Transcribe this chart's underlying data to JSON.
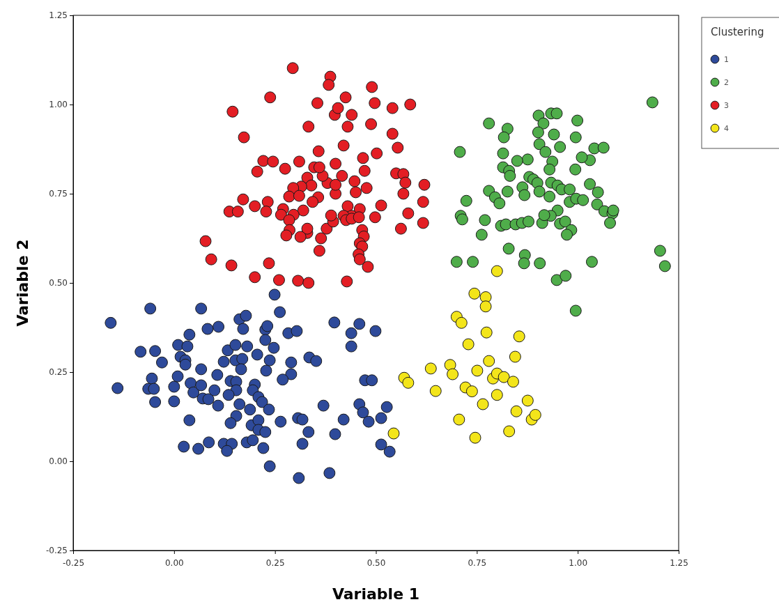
{
  "chart_data": {
    "type": "scatter",
    "xlabel": "Variable 1",
    "ylabel": "Variable 2",
    "legend_title": "Clustering",
    "legend": "top right",
    "marker": "circle",
    "grid": false,
    "xlim": [
      -0.25,
      1.25
    ],
    "ylim": [
      -0.25,
      1.25
    ],
    "xticks": [
      {
        "value": -0.25,
        "label": "-0.25"
      },
      {
        "value": 0,
        "label": "0.00"
      },
      {
        "value": 0.25,
        "label": "0.25"
      },
      {
        "value": 0.5,
        "label": "0.50"
      },
      {
        "value": 0.75,
        "label": "0.75"
      },
      {
        "value": 1,
        "label": "1.00"
      },
      {
        "value": 1.25,
        "label": "1.25"
      }
    ],
    "yticks": [
      {
        "value": -0.25,
        "label": "-0.25"
      },
      {
        "value": 0,
        "label": "0.00"
      },
      {
        "value": 0.25,
        "label": "0.25"
      },
      {
        "value": 0.5,
        "label": "0.50"
      },
      {
        "value": 0.75,
        "label": "0.75"
      },
      {
        "value": 1,
        "label": "1.00"
      },
      {
        "value": 1.25,
        "label": "1.25"
      }
    ],
    "series": [
      {
        "name": "1",
        "color": "#2e4a9a",
        "x": [
          -0.157,
          -0.059,
          0.067,
          0.249,
          0.262,
          -0.14,
          -0.083,
          -0.047,
          -0.03,
          -0.055,
          -0.064,
          -0.05,
          -0.047,
          0.0,
          0.0,
          0.009,
          0.01,
          0.033,
          0.038,
          0.016,
          0.028,
          0.028,
          0.083,
          0.11,
          0.041,
          0.067,
          0.048,
          0.067,
          0.071,
          0.085,
          0.1,
          0.109,
          0.107,
          0.123,
          0.133,
          0.152,
          0.181,
          0.162,
          0.178,
          0.171,
          0.152,
          0.169,
          0.166,
          0.14,
          0.154,
          0.154,
          0.135,
          0.162,
          0.2,
          0.195,
          0.209,
          0.218,
          0.235,
          0.188,
          0.154,
          0.14,
          0.192,
          0.209,
          0.209,
          0.226,
          0.206,
          0.226,
          0.231,
          0.226,
          0.247,
          0.237,
          0.228,
          0.29,
          0.29,
          0.269,
          0.283,
          0.304,
          0.335,
          0.352,
          0.264,
          0.307,
          0.318,
          0.333,
          0.318,
          0.37,
          0.397,
          0.439,
          0.459,
          0.439,
          0.499,
          0.473,
          0.49,
          0.42,
          0.399,
          0.459,
          0.468,
          0.482,
          0.513,
          0.527,
          0.513,
          0.534,
          0.024,
          0.06,
          0.086,
          0.123,
          0.143,
          0.131,
          0.18,
          0.195,
          0.221,
          0.237,
          0.309,
          0.385,
          0.038
        ],
        "values": [
          0.388,
          0.428,
          0.428,
          0.467,
          0.418,
          0.205,
          0.307,
          0.309,
          0.277,
          0.232,
          0.203,
          0.203,
          0.166,
          0.168,
          0.209,
          0.238,
          0.326,
          0.322,
          0.355,
          0.293,
          0.283,
          0.271,
          0.371,
          0.377,
          0.219,
          0.258,
          0.193,
          0.213,
          0.176,
          0.174,
          0.199,
          0.156,
          0.242,
          0.279,
          0.311,
          0.326,
          0.322,
          0.398,
          0.408,
          0.371,
          0.283,
          0.287,
          0.258,
          0.225,
          0.223,
          0.199,
          0.186,
          0.16,
          0.215,
          0.199,
          0.18,
          0.166,
          0.145,
          0.145,
          0.127,
          0.107,
          0.101,
          0.115,
          0.088,
          0.082,
          0.299,
          0.369,
          0.379,
          0.34,
          0.318,
          0.283,
          0.254,
          0.277,
          0.244,
          0.229,
          0.359,
          0.365,
          0.291,
          0.281,
          0.111,
          0.121,
          0.117,
          0.082,
          0.049,
          0.156,
          0.389,
          0.359,
          0.385,
          0.322,
          0.365,
          0.227,
          0.227,
          0.117,
          0.076,
          0.16,
          0.137,
          0.111,
          0.121,
          0.152,
          0.047,
          0.027,
          0.041,
          0.035,
          0.053,
          0.049,
          0.049,
          0.029,
          0.053,
          0.059,
          0.037,
          -0.014,
          -0.047,
          -0.033,
          0.115
        ]
      },
      {
        "name": "2",
        "color": "#4fad4a",
        "x": [
          1.185,
          1.204,
          1.216,
          0.78,
          0.826,
          0.817,
          0.903,
          0.915,
          0.934,
          0.948,
          0.941,
          0.999,
          0.995,
          0.902,
          0.905,
          0.956,
          0.815,
          0.708,
          0.876,
          0.815,
          0.83,
          0.85,
          0.92,
          0.937,
          0.93,
          0.994,
          1.041,
          1.064,
          1.03,
          1.01,
          0.832,
          0.826,
          0.78,
          0.795,
          0.806,
          0.863,
          0.868,
          0.88,
          0.89,
          0.9,
          0.905,
          0.93,
          0.934,
          0.95,
          0.96,
          0.98,
          0.98,
          0.95,
          0.933,
          0.956,
          0.969,
          0.996,
          1.013,
          1.03,
          1.05,
          1.048,
          1.066,
          1.086,
          1.08,
          1.088,
          0.724,
          0.71,
          0.714,
          0.762,
          0.77,
          0.81,
          0.822,
          0.846,
          0.862,
          0.878,
          0.912,
          0.917,
          0.984,
          0.973,
          0.829,
          0.869,
          0.906,
          0.7,
          0.74,
          0.867,
          1.035,
          0.948,
          0.97,
          0.995
        ],
        "values": [
          1.006,
          0.59,
          0.547,
          0.947,
          0.932,
          0.908,
          0.969,
          0.947,
          0.975,
          0.975,
          0.916,
          0.955,
          0.908,
          0.922,
          0.889,
          0.881,
          0.863,
          0.867,
          0.846,
          0.824,
          0.814,
          0.842,
          0.867,
          0.84,
          0.818,
          0.818,
          0.877,
          0.879,
          0.844,
          0.852,
          0.8,
          0.756,
          0.758,
          0.74,
          0.723,
          0.768,
          0.746,
          0.797,
          0.79,
          0.78,
          0.756,
          0.742,
          0.781,
          0.773,
          0.762,
          0.762,
          0.727,
          0.703,
          0.688,
          0.666,
          0.672,
          0.736,
          0.732,
          0.777,
          0.754,
          0.72,
          0.701,
          0.695,
          0.668,
          0.703,
          0.73,
          0.688,
          0.678,
          0.635,
          0.676,
          0.66,
          0.664,
          0.664,
          0.668,
          0.672,
          0.668,
          0.69,
          0.648,
          0.635,
          0.596,
          0.578,
          0.555,
          0.559,
          0.559,
          0.555,
          0.559,
          0.508,
          0.52,
          0.422
        ]
      },
      {
        "name": "3",
        "color": "#e31e24",
        "x": [
          0.294,
          0.387,
          0.383,
          0.49,
          0.238,
          0.145,
          0.425,
          0.355,
          0.398,
          0.406,
          0.44,
          0.497,
          0.541,
          0.585,
          0.173,
          0.333,
          0.43,
          0.488,
          0.541,
          0.554,
          0.42,
          0.221,
          0.245,
          0.206,
          0.275,
          0.31,
          0.347,
          0.358,
          0.4,
          0.468,
          0.502,
          0.472,
          0.55,
          0.568,
          0.573,
          0.62,
          0.568,
          0.617,
          0.617,
          0.58,
          0.562,
          0.513,
          0.498,
          0.477,
          0.447,
          0.45,
          0.46,
          0.43,
          0.44,
          0.42,
          0.4,
          0.416,
          0.38,
          0.4,
          0.368,
          0.36,
          0.33,
          0.34,
          0.315,
          0.295,
          0.285,
          0.31,
          0.357,
          0.343,
          0.32,
          0.296,
          0.27,
          0.232,
          0.2,
          0.171,
          0.137,
          0.158,
          0.228,
          0.265,
          0.285,
          0.286,
          0.33,
          0.33,
          0.378,
          0.394,
          0.389,
          0.426,
          0.44,
          0.458,
          0.466,
          0.47,
          0.46,
          0.466,
          0.457,
          0.48,
          0.46,
          0.364,
          0.36,
          0.278,
          0.313,
          0.078,
          0.092,
          0.142,
          0.235,
          0.2,
          0.26,
          0.307,
          0.333,
          0.428
        ],
        "values": [
          1.102,
          1.078,
          1.055,
          1.049,
          1.02,
          0.98,
          1.02,
          1.004,
          0.971,
          0.99,
          0.971,
          1.004,
          0.99,
          1.0,
          0.908,
          0.938,
          0.938,
          0.945,
          0.918,
          0.879,
          0.885,
          0.842,
          0.84,
          0.812,
          0.82,
          0.84,
          0.824,
          0.869,
          0.834,
          0.85,
          0.863,
          0.814,
          0.807,
          0.805,
          0.781,
          0.775,
          0.75,
          0.727,
          0.668,
          0.695,
          0.652,
          0.717,
          0.684,
          0.766,
          0.785,
          0.754,
          0.707,
          0.715,
          0.688,
          0.688,
          0.75,
          0.8,
          0.78,
          0.775,
          0.8,
          0.824,
          0.795,
          0.773,
          0.77,
          0.766,
          0.742,
          0.744,
          0.74,
          0.727,
          0.703,
          0.691,
          0.707,
          0.727,
          0.715,
          0.734,
          0.7,
          0.7,
          0.7,
          0.691,
          0.676,
          0.648,
          0.64,
          0.652,
          0.652,
          0.672,
          0.689,
          0.676,
          0.68,
          0.684,
          0.648,
          0.63,
          0.611,
          0.602,
          0.58,
          0.545,
          0.566,
          0.625,
          0.59,
          0.633,
          0.629,
          0.617,
          0.566,
          0.549,
          0.555,
          0.516,
          0.508,
          0.506,
          0.5,
          0.504
        ]
      },
      {
        "name": "4",
        "color": "#f3e51a",
        "x": [
          0.544,
          0.57,
          0.58,
          0.636,
          0.648,
          0.684,
          0.69,
          0.706,
          0.7,
          0.712,
          0.729,
          0.722,
          0.738,
          0.744,
          0.746,
          0.751,
          0.765,
          0.772,
          0.772,
          0.774,
          0.78,
          0.79,
          0.8,
          0.8,
          0.8,
          0.817,
          0.84,
          0.845,
          0.848,
          0.855,
          0.83,
          0.876,
          0.886,
          0.895
        ],
        "values": [
          0.078,
          0.234,
          0.22,
          0.26,
          0.197,
          0.27,
          0.244,
          0.117,
          0.405,
          0.388,
          0.328,
          0.207,
          0.196,
          0.47,
          0.066,
          0.254,
          0.16,
          0.46,
          0.434,
          0.361,
          0.281,
          0.232,
          0.246,
          0.186,
          0.533,
          0.236,
          0.223,
          0.293,
          0.14,
          0.35,
          0.084,
          0.17,
          0.117,
          0.13
        ]
      }
    ]
  }
}
